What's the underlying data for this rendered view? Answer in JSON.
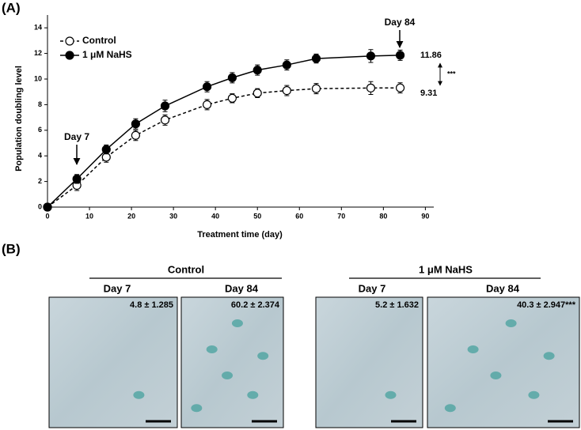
{
  "chart_data": {
    "type": "line",
    "panel_label": "(A)",
    "x_label": "Treatment time (day)",
    "y_label": "Population doubling level",
    "x": [
      0,
      7,
      14,
      21,
      28,
      38,
      44,
      50,
      57,
      64,
      77,
      84
    ],
    "series": [
      {
        "name": "Control",
        "color": "#000000",
        "marker_fill": "#ffffff",
        "dashed": true,
        "values": [
          0,
          1.7,
          3.9,
          5.6,
          6.8,
          8.0,
          8.5,
          8.9,
          9.1,
          9.25,
          9.3,
          9.31
        ],
        "errors": [
          0,
          0.4,
          0.4,
          0.4,
          0.4,
          0.4,
          0.35,
          0.35,
          0.4,
          0.4,
          0.5,
          0.4
        ]
      },
      {
        "name": "1 μM NaHS",
        "color": "#000000",
        "marker_fill": "#000000",
        "dashed": false,
        "values": [
          0,
          2.2,
          4.5,
          6.5,
          7.9,
          9.4,
          10.1,
          10.7,
          11.1,
          11.6,
          11.8,
          11.86
        ],
        "errors": [
          0,
          0.35,
          0.35,
          0.4,
          0.45,
          0.4,
          0.4,
          0.4,
          0.4,
          0.35,
          0.5,
          0.4
        ]
      }
    ],
    "annotations": [
      "Day 7",
      "Day 84",
      "***"
    ],
    "xlim": [
      0,
      92
    ],
    "xticks": [
      0,
      10,
      20,
      30,
      40,
      50,
      60,
      70,
      80,
      90
    ],
    "ylim": [
      0,
      15
    ],
    "yticks": [
      0,
      2,
      4,
      6,
      8,
      10,
      12,
      14
    ],
    "grid": false
  },
  "panel_b": {
    "panel_label": "(B)",
    "groups": [
      {
        "name": "Control",
        "images": [
          {
            "day": "Day 7",
            "value": "4.8 ± 1.285"
          },
          {
            "day": "Day 84",
            "value": "60.2 ± 2.374"
          }
        ]
      },
      {
        "name": "1 μM NaHS",
        "images": [
          {
            "day": "Day 7",
            "value": "5.2 ± 1.632"
          },
          {
            "day": "Day 84",
            "value": "40.3 ± 2.947***"
          }
        ]
      }
    ]
  }
}
